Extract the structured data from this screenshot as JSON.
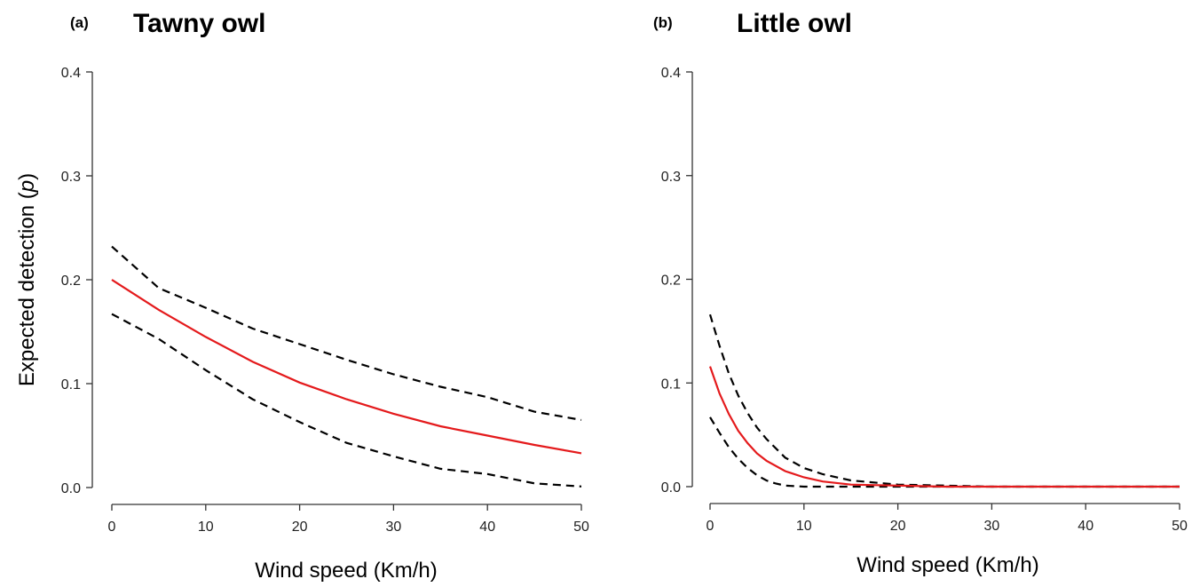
{
  "chart_data": [
    {
      "type": "line",
      "panel_label": "(a)",
      "title": "Tawny owl",
      "xlabel": "Wind speed (Km/h)",
      "ylabel": "Expected detection (p)",
      "xlim": [
        0,
        50
      ],
      "ylim": [
        0,
        0.4
      ],
      "x_ticks": [
        0,
        10,
        20,
        30,
        40,
        50
      ],
      "y_ticks": [
        "0.0",
        "0.1",
        "0.2",
        "0.3",
        "0.4"
      ],
      "grid": false,
      "series": [
        {
          "role": "estimate",
          "color": "#e41a1c",
          "style": "solid",
          "x": [
            0,
            5,
            10,
            15,
            20,
            25,
            30,
            35,
            40,
            45,
            50
          ],
          "y": [
            0.2,
            0.171,
            0.145,
            0.121,
            0.101,
            0.085,
            0.071,
            0.059,
            0.05,
            0.041,
            0.033
          ]
        },
        {
          "role": "upper",
          "color": "#000000",
          "style": "dashed",
          "x": [
            0,
            5,
            10,
            15,
            20,
            25,
            30,
            35,
            40,
            45,
            50
          ],
          "y": [
            0.232,
            0.192,
            0.173,
            0.153,
            0.138,
            0.123,
            0.109,
            0.097,
            0.087,
            0.073,
            0.065
          ]
        },
        {
          "role": "lower",
          "color": "#000000",
          "style": "dashed",
          "x": [
            0,
            5,
            10,
            15,
            20,
            25,
            30,
            35,
            40,
            45,
            50
          ],
          "y": [
            0.167,
            0.143,
            0.113,
            0.085,
            0.063,
            0.043,
            0.03,
            0.018,
            0.013,
            0.004,
            0.001
          ]
        }
      ]
    },
    {
      "type": "line",
      "panel_label": "(b)",
      "title": "Little owl",
      "xlabel": "Wind speed (Km/h)",
      "ylabel": "",
      "xlim": [
        0,
        50
      ],
      "ylim": [
        0,
        0.4
      ],
      "x_ticks": [
        0,
        10,
        20,
        30,
        40,
        50
      ],
      "y_ticks": [
        "0.0",
        "0.1",
        "0.2",
        "0.3",
        "0.4"
      ],
      "grid": false,
      "series": [
        {
          "role": "estimate",
          "color": "#e41a1c",
          "style": "solid",
          "x": [
            0,
            1,
            2,
            3,
            4,
            5,
            6,
            8,
            10,
            12,
            15,
            20,
            25,
            30,
            40,
            50
          ],
          "y": [
            0.116,
            0.09,
            0.07,
            0.054,
            0.042,
            0.032,
            0.025,
            0.015,
            0.009,
            0.005,
            0.002,
            0.001,
            0,
            0,
            0,
            0
          ]
        },
        {
          "role": "upper",
          "color": "#000000",
          "style": "dashed",
          "x": [
            0,
            1,
            2,
            3,
            4,
            5,
            6,
            8,
            10,
            12,
            15,
            20,
            25,
            30,
            40,
            50
          ],
          "y": [
            0.166,
            0.136,
            0.109,
            0.088,
            0.071,
            0.057,
            0.046,
            0.028,
            0.018,
            0.012,
            0.006,
            0.002,
            0.001,
            0,
            0,
            0
          ]
        },
        {
          "role": "lower",
          "color": "#000000",
          "style": "dashed",
          "x": [
            0,
            1,
            2,
            3,
            4,
            5,
            6,
            7,
            8,
            10,
            15,
            20,
            30,
            40,
            50
          ],
          "y": [
            0.067,
            0.052,
            0.038,
            0.027,
            0.018,
            0.011,
            0.006,
            0.003,
            0.001,
            0,
            0,
            0,
            0,
            0,
            0
          ]
        }
      ]
    }
  ]
}
